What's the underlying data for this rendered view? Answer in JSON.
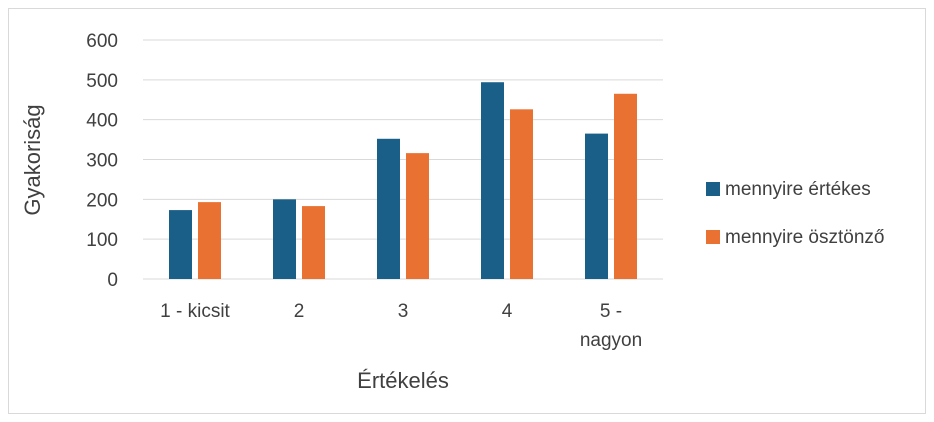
{
  "chart_data": {
    "type": "bar",
    "title": "",
    "xlabel": "Értékelés",
    "ylabel": "Gyakoriság",
    "ylim": [
      0,
      600
    ],
    "yticks": [
      0,
      100,
      200,
      300,
      400,
      500,
      600
    ],
    "grid": true,
    "legend_position": "right",
    "categories": [
      [
        "1 - kicsit"
      ],
      [
        "2"
      ],
      [
        "3"
      ],
      [
        "4"
      ],
      [
        "5 -",
        "nagyon"
      ]
    ],
    "series": [
      {
        "name": "mennyire értékes",
        "color": "#1a5f87",
        "values": [
          173,
          200,
          352,
          494,
          365
        ]
      },
      {
        "name": "mennyire ösztönző",
        "color": "#e97132",
        "values": [
          193,
          183,
          316,
          426,
          465
        ]
      }
    ]
  }
}
